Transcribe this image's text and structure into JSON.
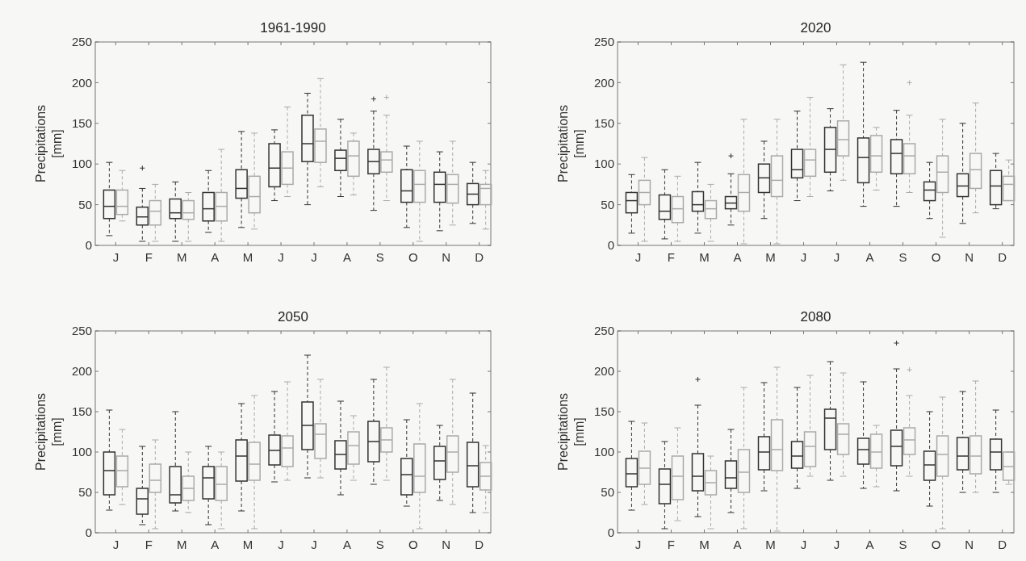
{
  "chart_data": [
    {
      "type": "box",
      "title": "1961-1990",
      "ylabel": "Precipitations [mm]",
      "categories": [
        "J",
        "F",
        "M",
        "A",
        "M",
        "J",
        "J",
        "A",
        "S",
        "O",
        "N",
        "D"
      ],
      "ylim": [
        0,
        250
      ],
      "yticks": [
        0,
        50,
        100,
        150,
        200,
        250
      ],
      "grid": false,
      "line_style": "dashed",
      "series": [
        {
          "color": "#333333",
          "boxes": [
            {
              "low": 12,
              "q1": 33,
              "median": 48,
              "q3": 68,
              "high": 102
            },
            {
              "low": 5,
              "q1": 25,
              "median": 35,
              "q3": 47,
              "high": 70,
              "outliers": [
                95
              ]
            },
            {
              "low": 5,
              "q1": 33,
              "median": 40,
              "q3": 57,
              "high": 78
            },
            {
              "low": 16,
              "q1": 30,
              "median": 45,
              "q3": 65,
              "high": 92
            },
            {
              "low": 22,
              "q1": 58,
              "median": 70,
              "q3": 93,
              "high": 140
            },
            {
              "low": 55,
              "q1": 72,
              "median": 95,
              "q3": 125,
              "high": 142
            },
            {
              "low": 50,
              "q1": 103,
              "median": 125,
              "q3": 160,
              "high": 187
            },
            {
              "low": 60,
              "q1": 92,
              "median": 107,
              "q3": 117,
              "high": 155
            },
            {
              "low": 43,
              "q1": 88,
              "median": 103,
              "q3": 118,
              "high": 165,
              "outliers": [
                180
              ]
            },
            {
              "low": 22,
              "q1": 53,
              "median": 67,
              "q3": 93,
              "high": 122
            },
            {
              "low": 18,
              "q1": 53,
              "median": 75,
              "q3": 90,
              "high": 115
            },
            {
              "low": 27,
              "q1": 50,
              "median": 63,
              "q3": 76,
              "high": 102
            }
          ]
        },
        {
          "color": "#aaaaaa",
          "boxes": [
            {
              "low": 30,
              "q1": 38,
              "median": 48,
              "q3": 68,
              "high": 92
            },
            {
              "low": 5,
              "q1": 25,
              "median": 42,
              "q3": 55,
              "high": 75
            },
            {
              "low": 5,
              "q1": 32,
              "median": 40,
              "q3": 55,
              "high": 65
            },
            {
              "low": 5,
              "q1": 30,
              "median": 48,
              "q3": 65,
              "high": 118
            },
            {
              "low": 20,
              "q1": 40,
              "median": 60,
              "q3": 85,
              "high": 138
            },
            {
              "low": 60,
              "q1": 75,
              "median": 95,
              "q3": 115,
              "high": 170
            },
            {
              "low": 72,
              "q1": 102,
              "median": 128,
              "q3": 143,
              "high": 205
            },
            {
              "low": 62,
              "q1": 85,
              "median": 110,
              "q3": 128,
              "high": 138
            },
            {
              "low": 55,
              "q1": 90,
              "median": 105,
              "q3": 115,
              "high": 160,
              "outliers": [
                182
              ]
            },
            {
              "low": 5,
              "q1": 53,
              "median": 75,
              "q3": 92,
              "high": 128
            },
            {
              "low": 25,
              "q1": 52,
              "median": 75,
              "q3": 87,
              "high": 128
            },
            {
              "low": 20,
              "q1": 50,
              "median": 70,
              "q3": 75,
              "high": 92
            }
          ]
        }
      ]
    },
    {
      "type": "box",
      "title": "2020",
      "ylabel": "Precipitations [mm]",
      "categories": [
        "J",
        "F",
        "M",
        "A",
        "M",
        "J",
        "J",
        "A",
        "S",
        "O",
        "N",
        "D"
      ],
      "ylim": [
        0,
        250
      ],
      "yticks": [
        0,
        50,
        100,
        150,
        200,
        250
      ],
      "grid": false,
      "line_style": "dashed",
      "series": [
        {
          "color": "#333333",
          "boxes": [
            {
              "low": 15,
              "q1": 40,
              "median": 55,
              "q3": 65,
              "high": 87
            },
            {
              "low": 8,
              "q1": 32,
              "median": 42,
              "q3": 62,
              "high": 93
            },
            {
              "low": 15,
              "q1": 42,
              "median": 50,
              "q3": 66,
              "high": 102
            },
            {
              "low": 25,
              "q1": 45,
              "median": 52,
              "q3": 60,
              "high": 88,
              "outliers": [
                110
              ]
            },
            {
              "low": 33,
              "q1": 65,
              "median": 83,
              "q3": 100,
              "high": 128
            },
            {
              "low": 55,
              "q1": 83,
              "median": 93,
              "q3": 118,
              "high": 165
            },
            {
              "low": 67,
              "q1": 90,
              "median": 118,
              "q3": 145,
              "high": 168
            },
            {
              "low": 48,
              "q1": 77,
              "median": 108,
              "q3": 132,
              "high": 225
            },
            {
              "low": 48,
              "q1": 88,
              "median": 113,
              "q3": 130,
              "high": 166
            },
            {
              "low": 33,
              "q1": 55,
              "median": 68,
              "q3": 78,
              "high": 102
            },
            {
              "low": 27,
              "q1": 60,
              "median": 73,
              "q3": 88,
              "high": 150
            },
            {
              "low": 45,
              "q1": 50,
              "median": 73,
              "q3": 92,
              "high": 113
            }
          ]
        },
        {
          "color": "#aaaaaa",
          "boxes": [
            {
              "low": 5,
              "q1": 50,
              "median": 65,
              "q3": 80,
              "high": 108
            },
            {
              "low": 5,
              "q1": 28,
              "median": 45,
              "q3": 60,
              "high": 85
            },
            {
              "low": 5,
              "q1": 33,
              "median": 45,
              "q3": 55,
              "high": 75
            },
            {
              "low": 2,
              "q1": 42,
              "median": 65,
              "q3": 87,
              "high": 155
            },
            {
              "low": 2,
              "q1": 60,
              "median": 80,
              "q3": 110,
              "high": 155
            },
            {
              "low": 60,
              "q1": 85,
              "median": 105,
              "q3": 118,
              "high": 182
            },
            {
              "low": 80,
              "q1": 110,
              "median": 130,
              "q3": 153,
              "high": 222
            },
            {
              "low": 68,
              "q1": 90,
              "median": 110,
              "q3": 135,
              "high": 145
            },
            {
              "low": 65,
              "q1": 88,
              "median": 110,
              "q3": 125,
              "high": 160,
              "outliers": [
                200
              ]
            },
            {
              "low": 10,
              "q1": 65,
              "median": 90,
              "q3": 110,
              "high": 155
            },
            {
              "low": 40,
              "q1": 70,
              "median": 93,
              "q3": 113,
              "high": 175
            },
            {
              "low": 55,
              "q1": 55,
              "median": 75,
              "q3": 85,
              "high": 105
            }
          ]
        }
      ]
    },
    {
      "type": "box",
      "title": "2050",
      "ylabel": "Precipitations [mm]",
      "categories": [
        "J",
        "F",
        "M",
        "A",
        "M",
        "J",
        "J",
        "A",
        "S",
        "O",
        "N",
        "D"
      ],
      "ylim": [
        0,
        250
      ],
      "yticks": [
        0,
        50,
        100,
        150,
        200,
        250
      ],
      "grid": false,
      "line_style": "dashed",
      "series": [
        {
          "color": "#333333",
          "boxes": [
            {
              "low": 28,
              "q1": 47,
              "median": 77,
              "q3": 100,
              "high": 152
            },
            {
              "low": 10,
              "q1": 23,
              "median": 42,
              "q3": 55,
              "high": 107
            },
            {
              "low": 27,
              "q1": 37,
              "median": 47,
              "q3": 82,
              "high": 150
            },
            {
              "low": 10,
              "q1": 42,
              "median": 68,
              "q3": 82,
              "high": 107
            },
            {
              "low": 27,
              "q1": 64,
              "median": 95,
              "q3": 115,
              "high": 160
            },
            {
              "low": 63,
              "q1": 84,
              "median": 102,
              "q3": 121,
              "high": 175
            },
            {
              "low": 68,
              "q1": 103,
              "median": 133,
              "q3": 162,
              "high": 220
            },
            {
              "low": 47,
              "q1": 79,
              "median": 97,
              "q3": 114,
              "high": 163
            },
            {
              "low": 60,
              "q1": 88,
              "median": 113,
              "q3": 138,
              "high": 190
            },
            {
              "low": 33,
              "q1": 47,
              "median": 72,
              "q3": 92,
              "high": 140
            },
            {
              "low": 40,
              "q1": 66,
              "median": 89,
              "q3": 107,
              "high": 133
            },
            {
              "low": 25,
              "q1": 57,
              "median": 83,
              "q3": 112,
              "high": 173
            }
          ]
        },
        {
          "color": "#aaaaaa",
          "boxes": [
            {
              "low": 35,
              "q1": 57,
              "median": 77,
              "q3": 95,
              "high": 128
            },
            {
              "low": 5,
              "q1": 50,
              "median": 65,
              "q3": 85,
              "high": 115
            },
            {
              "low": 25,
              "q1": 40,
              "median": 55,
              "q3": 70,
              "high": 100
            },
            {
              "low": 5,
              "q1": 40,
              "median": 60,
              "q3": 82,
              "high": 100
            },
            {
              "low": 5,
              "q1": 65,
              "median": 85,
              "q3": 112,
              "high": 170
            },
            {
              "low": 65,
              "q1": 82,
              "median": 105,
              "q3": 120,
              "high": 187
            },
            {
              "low": 68,
              "q1": 92,
              "median": 122,
              "q3": 135,
              "high": 190
            },
            {
              "low": 65,
              "q1": 85,
              "median": 108,
              "q3": 125,
              "high": 145
            },
            {
              "low": 65,
              "q1": 100,
              "median": 115,
              "q3": 130,
              "high": 205
            },
            {
              "low": 5,
              "q1": 50,
              "median": 70,
              "q3": 110,
              "high": 160
            },
            {
              "low": 35,
              "q1": 75,
              "median": 100,
              "q3": 120,
              "high": 190
            },
            {
              "low": 25,
              "q1": 53,
              "median": 70,
              "q3": 87,
              "high": 108
            }
          ]
        }
      ]
    },
    {
      "type": "box",
      "title": "2080",
      "ylabel": "Precipitations [mm]",
      "categories": [
        "J",
        "F",
        "M",
        "A",
        "M",
        "J",
        "J",
        "A",
        "S",
        "O",
        "N",
        "D"
      ],
      "ylim": [
        0,
        250
      ],
      "yticks": [
        0,
        50,
        100,
        150,
        200,
        250
      ],
      "grid": false,
      "line_style": "dashed",
      "series": [
        {
          "color": "#333333",
          "boxes": [
            {
              "low": 28,
              "q1": 57,
              "median": 73,
              "q3": 92,
              "high": 138
            },
            {
              "low": 5,
              "q1": 36,
              "median": 60,
              "q3": 79,
              "high": 113
            },
            {
              "low": 20,
              "q1": 52,
              "median": 70,
              "q3": 98,
              "high": 158,
              "outliers": [
                190
              ]
            },
            {
              "low": 25,
              "q1": 55,
              "median": 68,
              "q3": 89,
              "high": 128
            },
            {
              "low": 52,
              "q1": 78,
              "median": 100,
              "q3": 119,
              "high": 186
            },
            {
              "low": 55,
              "q1": 80,
              "median": 95,
              "q3": 113,
              "high": 180
            },
            {
              "low": 65,
              "q1": 103,
              "median": 142,
              "q3": 153,
              "high": 212
            },
            {
              "low": 55,
              "q1": 85,
              "median": 103,
              "q3": 117,
              "high": 187
            },
            {
              "low": 52,
              "q1": 83,
              "median": 107,
              "q3": 127,
              "high": 203,
              "outliers": [
                235
              ]
            },
            {
              "low": 33,
              "q1": 65,
              "median": 84,
              "q3": 101,
              "high": 150
            },
            {
              "low": 50,
              "q1": 78,
              "median": 95,
              "q3": 118,
              "high": 175
            },
            {
              "low": 50,
              "q1": 78,
              "median": 100,
              "q3": 116,
              "high": 152
            }
          ]
        },
        {
          "color": "#aaaaaa",
          "boxes": [
            {
              "low": 35,
              "q1": 60,
              "median": 80,
              "q3": 101,
              "high": 136
            },
            {
              "low": 15,
              "q1": 41,
              "median": 70,
              "q3": 95,
              "high": 130
            },
            {
              "low": 5,
              "q1": 47,
              "median": 62,
              "q3": 77,
              "high": 95
            },
            {
              "low": 5,
              "q1": 50,
              "median": 75,
              "q3": 103,
              "high": 180
            },
            {
              "low": 2,
              "q1": 77,
              "median": 103,
              "q3": 140,
              "high": 205
            },
            {
              "low": 70,
              "q1": 82,
              "median": 107,
              "q3": 125,
              "high": 195
            },
            {
              "low": 70,
              "q1": 97,
              "median": 122,
              "q3": 135,
              "high": 198
            },
            {
              "low": 57,
              "q1": 80,
              "median": 100,
              "q3": 122,
              "high": 133
            },
            {
              "low": 70,
              "q1": 97,
              "median": 115,
              "q3": 130,
              "high": 170,
              "outliers": [
                202
              ]
            },
            {
              "low": 5,
              "q1": 70,
              "median": 97,
              "q3": 120,
              "high": 168
            },
            {
              "low": 50,
              "q1": 73,
              "median": 95,
              "q3": 120,
              "high": 188
            },
            {
              "low": 60,
              "q1": 65,
              "median": 82,
              "q3": 100,
              "high": 100
            }
          ]
        }
      ]
    }
  ]
}
